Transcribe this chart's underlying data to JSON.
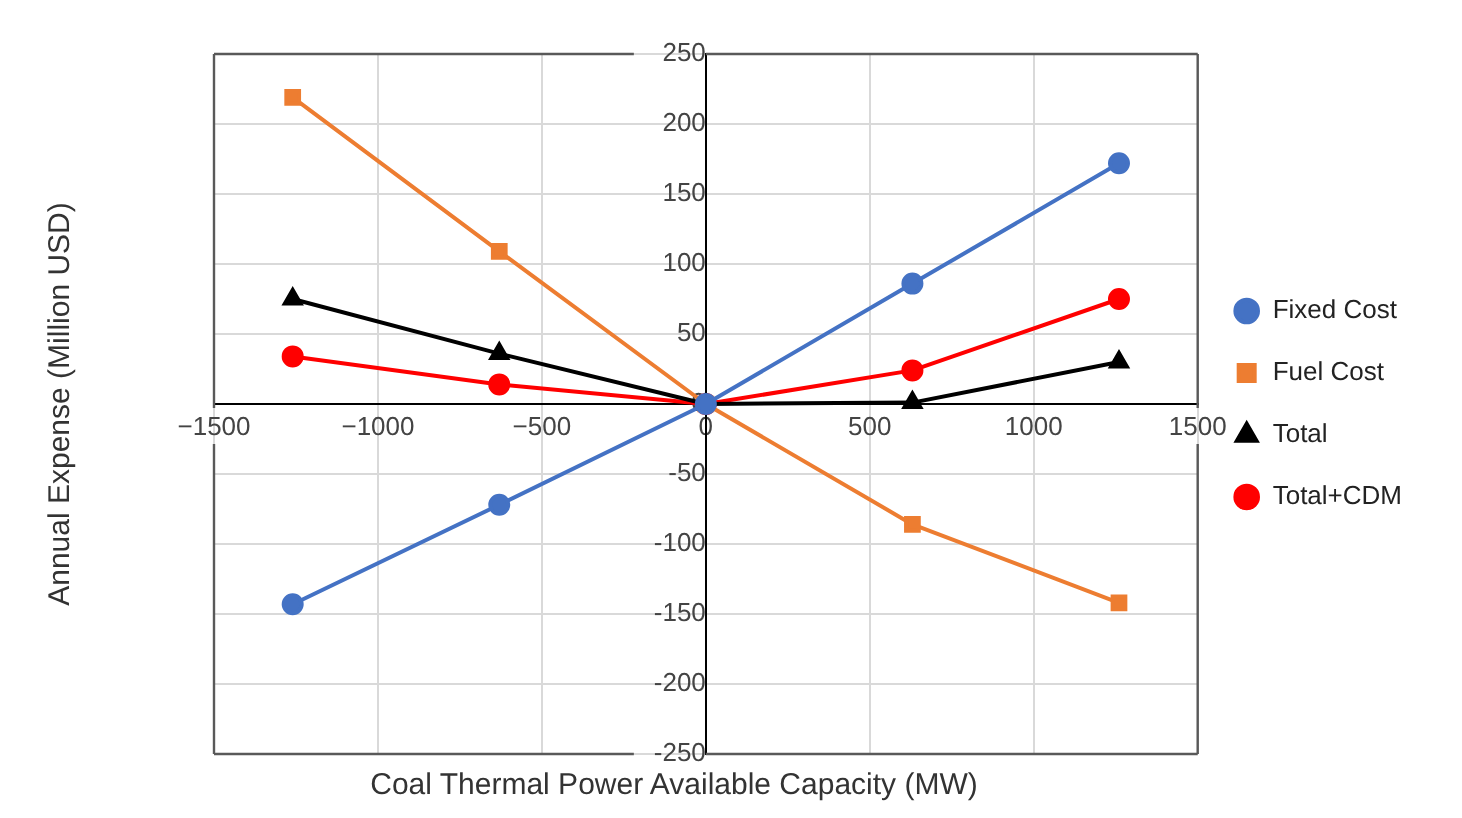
{
  "chart_data": {
    "type": "line",
    "xlabel": "Coal Thermal Power Available Capacity (MW)",
    "ylabel": "Annual Expense (Million USD)",
    "x": [
      -1260,
      -630,
      0,
      630,
      1260
    ],
    "series": [
      {
        "name": "Fixed Cost",
        "color": "#4472c4",
        "marker": "circle",
        "values": [
          -143,
          -72,
          0,
          86,
          172
        ]
      },
      {
        "name": "Fuel Cost",
        "color": "#ed7d31",
        "marker": "square",
        "values": [
          219,
          109,
          0,
          -86,
          -142
        ]
      },
      {
        "name": "Total",
        "color": "#000000",
        "marker": "triangle",
        "values": [
          75,
          36,
          0,
          1,
          30
        ]
      },
      {
        "name": "Total+CDM",
        "color": "#ff0000",
        "marker": "circle",
        "values": [
          34,
          14,
          0,
          24,
          75
        ]
      }
    ],
    "xlim": [
      -1500,
      1500
    ],
    "xticks": [
      -1500,
      -1000,
      -500,
      0,
      500,
      1000,
      1500
    ],
    "ylim": [
      -250,
      250
    ],
    "yticks": [
      -250,
      -200,
      -150,
      -100,
      -50,
      0,
      50,
      100,
      150,
      200,
      250
    ],
    "grid": true,
    "legend": "right",
    "line_style": "solid"
  }
}
